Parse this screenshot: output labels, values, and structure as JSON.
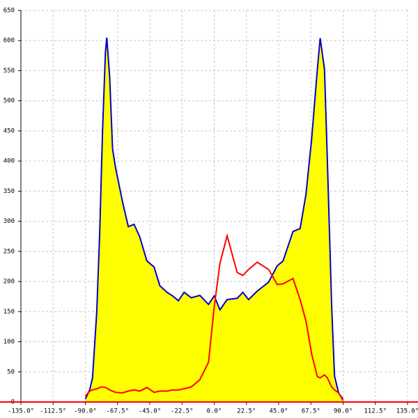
{
  "chart_data": {
    "type": "line",
    "x": [
      -90,
      -87,
      -85,
      -82,
      -80,
      -78,
      -76,
      -75,
      -73,
      -71,
      -69,
      -64,
      -60,
      -56,
      -52,
      -47,
      -42,
      -38,
      -33,
      -29,
      -25,
      -21,
      -16,
      -10,
      -4,
      0,
      4,
      9,
      16,
      20,
      24,
      30,
      38,
      44,
      48,
      55,
      60,
      64,
      68,
      72,
      74,
      77,
      79,
      82,
      84,
      87,
      90
    ],
    "series": [
      {
        "color": "#0000cc",
        "fill": "#ffff00",
        "values": [
          5,
          20,
          40,
          150,
          280,
          450,
          580,
          605,
          540,
          420,
          390,
          332,
          291,
          295,
          274,
          234,
          224,
          193,
          182,
          176,
          168,
          182,
          173,
          177,
          162,
          176,
          153,
          170,
          172,
          182,
          170,
          184,
          199,
          226,
          234,
          283,
          288,
          344,
          436,
          552,
          604,
          552,
          401,
          158,
          43,
          14,
          5
        ]
      },
      {
        "color": "#ff0000",
        "values": [
          10,
          18,
          20,
          22,
          24,
          25,
          24,
          23,
          20,
          18,
          16,
          15,
          18,
          20,
          18,
          24,
          16,
          18,
          18,
          20,
          20,
          22,
          25,
          37,
          66,
          158,
          230,
          276,
          215,
          210,
          220,
          232,
          220,
          195,
          196,
          205,
          170,
          135,
          80,
          42,
          40,
          45,
          40,
          25,
          20,
          15,
          2
        ]
      }
    ],
    "xlim": [
      -135,
      135
    ],
    "xticks": [
      {
        "value": -135,
        "label": "-135.0°"
      },
      {
        "value": -112.5,
        "label": "-112.5°"
      },
      {
        "value": -90,
        "label": "-90.0°"
      },
      {
        "value": -67.5,
        "label": "-67.5°"
      },
      {
        "value": -45,
        "label": "-45.0°"
      },
      {
        "value": -22.5,
        "label": "-22.5°"
      },
      {
        "value": 0,
        "label": "0.0°"
      },
      {
        "value": 22.5,
        "label": "22.5°"
      },
      {
        "value": 45,
        "label": "45.0°"
      },
      {
        "value": 67.5,
        "label": "67.5°"
      },
      {
        "value": 90,
        "label": "90.0°"
      },
      {
        "value": 112.5,
        "label": "112.5°"
      },
      {
        "value": 135,
        "label": "135.0°"
      }
    ],
    "ylim": [
      0,
      650
    ],
    "yticks": [
      0,
      50,
      100,
      150,
      200,
      250,
      300,
      350,
      400,
      450,
      500,
      550,
      600,
      650
    ],
    "grid": true
  }
}
